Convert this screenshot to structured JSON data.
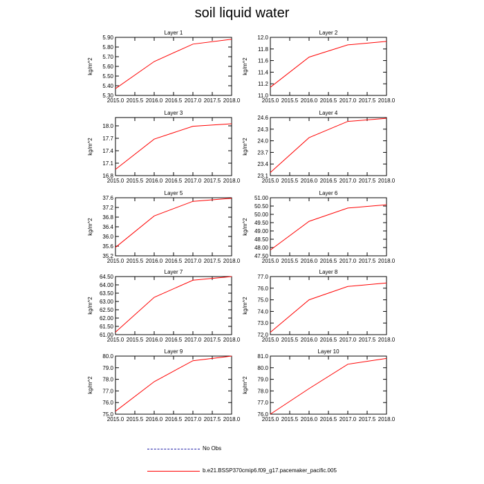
{
  "title": "soil liquid water",
  "legend": {
    "obs_label": "No Obs",
    "model_label": "b.e21.BSSP370cmip6.f09_g17.pacemaker_pacific.005",
    "obs_color": "#1a1aa6",
    "model_color": "#ff0000"
  },
  "chart_data": [
    {
      "type": "line",
      "title": "Layer 1",
      "ylabel": "kg/m^2",
      "x": [
        2015,
        2016,
        2017,
        2018
      ],
      "values": [
        5.37,
        5.65,
        5.83,
        5.88
      ],
      "ylim": [
        5.3,
        5.9
      ],
      "yticks": [
        "5.30",
        "5.40",
        "5.50",
        "5.60",
        "5.70",
        "5.80",
        "5.90"
      ],
      "xlim": [
        2015.0,
        2018.0
      ],
      "xticks": [
        "2015.0",
        "2015.5",
        "2016.0",
        "2016.5",
        "2017.0",
        "2017.5",
        "2018.0"
      ]
    },
    {
      "type": "line",
      "title": "Layer 2",
      "ylabel": "kg/m^2",
      "x": [
        2015,
        2016,
        2017,
        2018
      ],
      "values": [
        11.14,
        11.66,
        11.87,
        11.93
      ],
      "ylim": [
        11.0,
        12.0
      ],
      "yticks": [
        "11.0",
        "11.2",
        "11.4",
        "11.6",
        "11.8",
        "12.0"
      ],
      "xlim": [
        2015.0,
        2018.0
      ],
      "xticks": [
        "2015.0",
        "2015.5",
        "2016.0",
        "2016.5",
        "2017.0",
        "2017.5",
        "2018.0"
      ]
    },
    {
      "type": "line",
      "title": "Layer 3",
      "ylabel": "kg/m^2",
      "x": [
        2015,
        2016,
        2017,
        2018
      ],
      "values": [
        16.95,
        17.68,
        17.99,
        18.05
      ],
      "ylim": [
        16.8,
        18.2
      ],
      "yticks": [
        "16.8",
        "17.1",
        "17.4",
        "17.7",
        "18.0"
      ],
      "xlim": [
        2015.0,
        2018.0
      ],
      "xticks": [
        "2015.0",
        "2015.5",
        "2016.0",
        "2016.5",
        "2017.0",
        "2017.5",
        "2018.0"
      ]
    },
    {
      "type": "line",
      "title": "Layer 4",
      "ylabel": "kg/m^2",
      "x": [
        2015,
        2016,
        2017,
        2018
      ],
      "values": [
        23.18,
        24.08,
        24.5,
        24.58
      ],
      "ylim": [
        23.1,
        24.6
      ],
      "yticks": [
        "23.1",
        "23.4",
        "23.7",
        "24.0",
        "24.3",
        "24.6"
      ],
      "xlim": [
        2015.0,
        2018.0
      ],
      "xticks": [
        "2015.0",
        "2015.5",
        "2016.0",
        "2016.5",
        "2017.0",
        "2017.5",
        "2018.0"
      ]
    },
    {
      "type": "line",
      "title": "Layer 5",
      "ylabel": "kg/m^2",
      "x": [
        2015,
        2016,
        2017,
        2018
      ],
      "values": [
        35.55,
        36.85,
        37.45,
        37.58
      ],
      "ylim": [
        35.2,
        37.6
      ],
      "yticks": [
        "35.2",
        "35.6",
        "36.0",
        "36.4",
        "36.8",
        "37.2",
        "37.6"
      ],
      "xlim": [
        2015.0,
        2018.0
      ],
      "xticks": [
        "2015.0",
        "2015.5",
        "2016.0",
        "2016.5",
        "2017.0",
        "2017.5",
        "2018.0"
      ]
    },
    {
      "type": "line",
      "title": "Layer 6",
      "ylabel": "kg/m^2",
      "x": [
        2015,
        2016,
        2017,
        2018
      ],
      "values": [
        47.85,
        49.58,
        50.38,
        50.58
      ],
      "ylim": [
        47.5,
        51.0
      ],
      "yticks": [
        "47.50",
        "48.00",
        "48.50",
        "49.00",
        "49.50",
        "50.00",
        "50.50",
        "51.00"
      ],
      "xlim": [
        2015.0,
        2018.0
      ],
      "xticks": [
        "2015.0",
        "2015.5",
        "2016.0",
        "2016.5",
        "2017.0",
        "2017.5",
        "2018.0"
      ]
    },
    {
      "type": "line",
      "title": "Layer 7",
      "ylabel": "kg/m^2",
      "x": [
        2015,
        2016,
        2017,
        2018
      ],
      "values": [
        61.15,
        63.25,
        64.28,
        64.5
      ],
      "ylim": [
        61.0,
        64.5
      ],
      "yticks": [
        "61.00",
        "61.50",
        "62.00",
        "62.50",
        "63.00",
        "63.50",
        "64.00",
        "64.50"
      ],
      "xlim": [
        2015.0,
        2018.0
      ],
      "xticks": [
        "2015.0",
        "2015.5",
        "2016.0",
        "2016.5",
        "2017.0",
        "2017.5",
        "2018.0"
      ]
    },
    {
      "type": "line",
      "title": "Layer 8",
      "ylabel": "kg/m^2",
      "x": [
        2015,
        2016,
        2017,
        2018
      ],
      "values": [
        72.2,
        75.0,
        76.15,
        76.45
      ],
      "ylim": [
        72.0,
        77.0
      ],
      "yticks": [
        "72.0",
        "73.0",
        "74.0",
        "75.0",
        "76.0",
        "77.0"
      ],
      "xlim": [
        2015.0,
        2018.0
      ],
      "xticks": [
        "2015.0",
        "2015.5",
        "2016.0",
        "2016.5",
        "2017.0",
        "2017.5",
        "2018.0"
      ]
    },
    {
      "type": "line",
      "title": "Layer 9",
      "ylabel": "kg/m^2",
      "x": [
        2015,
        2016,
        2017,
        2018
      ],
      "values": [
        75.25,
        77.8,
        79.6,
        80.0
      ],
      "ylim": [
        75.0,
        80.0
      ],
      "yticks": [
        "75.0",
        "76.0",
        "77.0",
        "78.0",
        "79.0",
        "80.0"
      ],
      "xlim": [
        2015.0,
        2018.0
      ],
      "xticks": [
        "2015.0",
        "2015.5",
        "2016.0",
        "2016.5",
        "2017.0",
        "2017.5",
        "2018.0"
      ]
    },
    {
      "type": "line",
      "title": "Layer 10",
      "ylabel": "kg/m^2",
      "x": [
        2015,
        2016,
        2017,
        2018
      ],
      "values": [
        76.0,
        78.2,
        80.3,
        80.8
      ],
      "ylim": [
        76.0,
        81.0
      ],
      "yticks": [
        "76.0",
        "77.0",
        "78.0",
        "79.0",
        "80.0",
        "81.0"
      ],
      "xlim": [
        2015.0,
        2018.0
      ],
      "xticks": [
        "2015.0",
        "2015.5",
        "2016.0",
        "2016.5",
        "2017.0",
        "2017.5",
        "2018.0"
      ]
    }
  ]
}
